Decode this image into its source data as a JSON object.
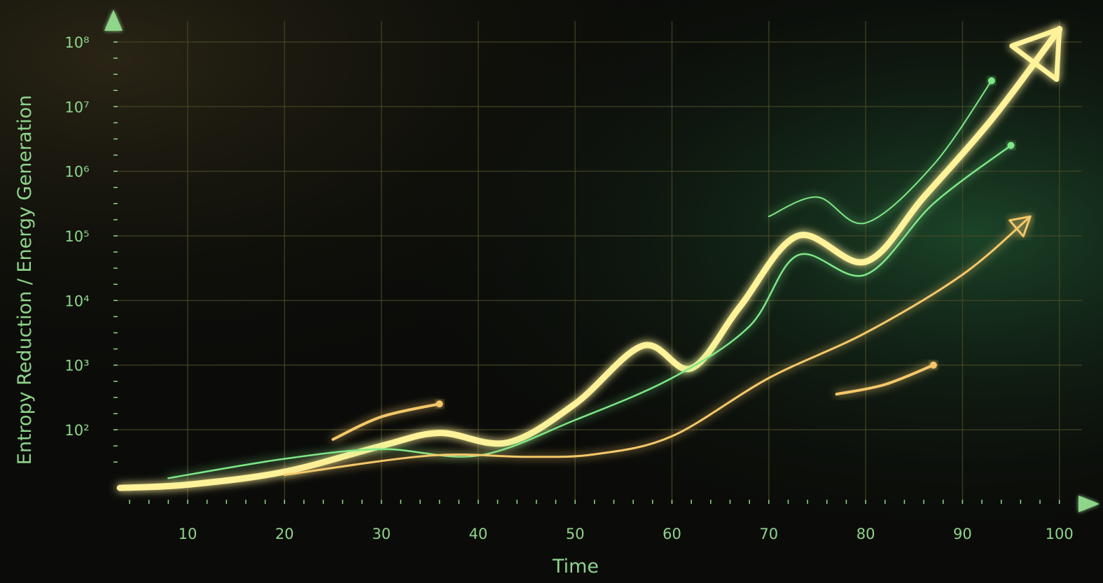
{
  "chart_data": {
    "type": "line",
    "title": "",
    "xlabel": "Time",
    "ylabel": "Entropy Reduction / Energy Generation",
    "x_ticks": [
      10,
      20,
      30,
      40,
      50,
      60,
      70,
      80,
      90,
      100
    ],
    "y_ticks": [
      {
        "value": 2,
        "label": "10²"
      },
      {
        "value": 3,
        "label": "10³"
      },
      {
        "value": 4,
        "label": "10⁴"
      },
      {
        "value": 5,
        "label": "10⁵"
      },
      {
        "value": 6,
        "label": "10⁶"
      },
      {
        "value": 7,
        "label": "10⁷"
      },
      {
        "value": 8,
        "label": "10⁸"
      }
    ],
    "y_scale": "log",
    "xlim": [
      3,
      103
    ],
    "ylim_log10": [
      1.1,
      8.2
    ],
    "grid": true,
    "legend": "none",
    "colors": {
      "background": "#0b0c09",
      "axis": "#8fd58a",
      "grid": "#4a4a26",
      "primary_series": "#fff29a",
      "green_series": "#7ee787",
      "gold_series": "#f4c86a"
    },
    "series": [
      {
        "color": "primary_series",
        "arrow": true,
        "x": [
          3,
          10,
          20,
          30,
          36,
          43,
          50,
          57,
          62,
          67,
          73,
          80,
          86,
          93,
          100
        ],
        "log10_y": [
          1.1,
          1.15,
          1.35,
          1.75,
          1.95,
          1.8,
          2.4,
          3.3,
          2.95,
          3.9,
          5.0,
          4.6,
          5.6,
          6.8,
          8.2
        ]
      },
      {
        "color": "green_series",
        "arrow": false,
        "x": [
          8,
          20,
          30,
          40,
          50,
          60,
          68,
          73,
          80,
          87,
          95
        ],
        "log10_y": [
          1.25,
          1.55,
          1.7,
          1.6,
          2.15,
          2.8,
          3.6,
          4.7,
          4.4,
          5.5,
          6.4
        ]
      },
      {
        "color": "gold_series",
        "arrow": true,
        "x": [
          20,
          35,
          45,
          52,
          60,
          70,
          80,
          90,
          97
        ],
        "log10_y": [
          1.3,
          1.6,
          1.58,
          1.62,
          1.9,
          2.8,
          3.5,
          4.4,
          5.3
        ]
      },
      {
        "color": "green_series",
        "arrow": false,
        "x": [
          70,
          75,
          80,
          87,
          93
        ],
        "log10_y": [
          5.3,
          5.6,
          5.2,
          6.1,
          7.4
        ]
      },
      {
        "color": "gold_series",
        "arrow": false,
        "x": [
          25,
          30,
          36
        ],
        "log10_y": [
          1.85,
          2.2,
          2.4
        ]
      },
      {
        "color": "gold_series",
        "arrow": false,
        "x": [
          77,
          82,
          87
        ],
        "log10_y": [
          2.55,
          2.7,
          3.0
        ]
      }
    ]
  }
}
